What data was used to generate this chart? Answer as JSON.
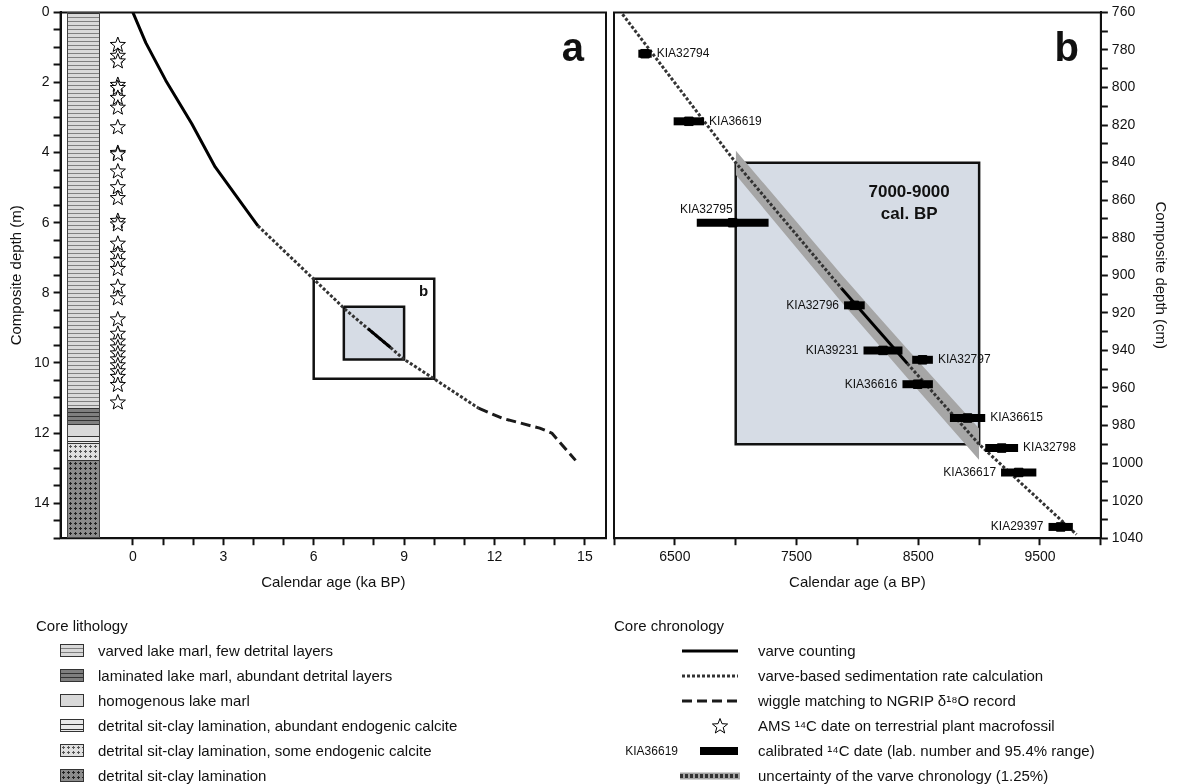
{
  "chart_data": [
    {
      "type": "line",
      "xlabel": "Calendar age (ka BP)",
      "ylabel": "Composite depth (m)",
      "legend": "bottom",
      "legend_title": "Core lithology",
      "xlim": [
        -2.4,
        15.7
      ],
      "xticks": [
        0,
        {
          "value": 1,
          "label": null
        },
        {
          "value": 2,
          "label": null
        },
        3,
        {
          "value": 4,
          "label": null
        },
        {
          "value": 5,
          "label": null
        },
        6,
        {
          "value": 7,
          "label": null
        },
        {
          "value": 8,
          "label": null
        },
        9,
        {
          "value": 10,
          "label": null
        },
        {
          "value": 11,
          "label": null
        },
        12,
        {
          "value": 13,
          "label": null
        },
        {
          "value": 14,
          "label": null
        },
        15
      ],
      "ylim": [
        15,
        0
      ],
      "yticks": [
        0,
        {
          "value": 0.5,
          "label": null
        },
        {
          "value": 1,
          "label": null
        },
        {
          "value": 1.5,
          "label": null
        },
        2,
        {
          "value": 2.5,
          "label": null
        },
        {
          "value": 3,
          "label": null
        },
        {
          "value": 3.5,
          "label": null
        },
        4,
        {
          "value": 4.5,
          "label": null
        },
        {
          "value": 5,
          "label": null
        },
        {
          "value": 5.5,
          "label": null
        },
        6,
        {
          "value": 6.5,
          "label": null
        },
        {
          "value": 7,
          "label": null
        },
        {
          "value": 7.5,
          "label": null
        },
        8,
        {
          "value": 8.5,
          "label": null
        },
        {
          "value": 9,
          "label": null
        },
        {
          "value": 9.5,
          "label": null
        },
        10,
        {
          "value": 10.5,
          "label": null
        },
        {
          "value": 11,
          "label": null
        },
        {
          "value": 11.5,
          "label": null
        },
        12,
        {
          "value": 12.5,
          "label": null
        },
        {
          "value": 13,
          "label": null
        },
        {
          "value": 13.5,
          "label": null
        },
        14,
        {
          "value": 14.5,
          "label": null
        },
        {
          "value": 15,
          "label": null
        }
      ],
      "annotations": [
        "a",
        {
          "text": "b",
          "x": 10,
          "y": 7.6
        },
        "varved lake marl, few detrital layers",
        "laminated lake marl, abundant detrital layers",
        "homogenous lake marl",
        "detrital sit-clay lamination, abundant endogenic calcite",
        "detrital sit-clay lamination, some endogenic calcite",
        "detrital sit-clay lamination"
      ],
      "series": [
        {
          "name": "varve counting",
          "type": "line",
          "line_style": "solid",
          "color": "#000000",
          "x": [
            0,
            0.43,
            1.09,
            1.95,
            2.73,
            3.39,
            4.15,
            6,
            7.81,
            8.55
          ],
          "values": [
            0,
            0.87,
            1.94,
            3.17,
            4.41,
            5.19,
            6.09,
            null,
            9.03,
            9.56
          ]
        },
        {
          "name": "varve-based sedimentation rate calculation",
          "type": "line",
          "line_style": "dotted",
          "color": "#333333",
          "x": [
            4.15,
            6.62,
            7.03,
            7.81,
            8.55,
            8.97,
            9.99,
            11.47
          ],
          "values": [
            6.09,
            8.12,
            8.46,
            9.03,
            9.56,
            9.88,
            10.45,
            11.29
          ]
        },
        {
          "name": "wiggle matching to NGRIP δ¹⁸O record",
          "type": "line",
          "line_style": "dashed",
          "color": "#1a1a1a",
          "x": [
            11.47,
            12.26,
            13.5,
            13.9,
            14.69
          ],
          "values": [
            11.29,
            11.58,
            11.86,
            12.0,
            12.78
          ]
        },
        {
          "name": "AMS ¹⁴C date on terrestrial plant macrofossil",
          "type": "scatter",
          "marker": "star",
          "color": "#000000",
          "x": [
            -0.5,
            -0.5,
            -0.5,
            -0.5,
            -0.5,
            -0.5,
            -0.5,
            -0.5,
            -0.5,
            -0.5,
            -0.5,
            -0.5,
            -0.5,
            -0.5,
            -0.5,
            -0.5,
            -0.5,
            -0.5,
            -0.5,
            -0.5,
            -0.5,
            -0.5,
            -0.5,
            -0.5,
            -0.5,
            -0.5,
            -0.5,
            -0.5,
            -0.5,
            -0.5,
            -0.5,
            -0.5
          ],
          "values": [
            0.93,
            1.24,
            1.4,
            2.07,
            2.16,
            2.44,
            2.72,
            3.28,
            4.01,
            4.05,
            4.54,
            4.99,
            5.3,
            5.95,
            6.05,
            6.6,
            6.89,
            7.1,
            7.32,
            7.83,
            8.16,
            8.76,
            9.17,
            9.39,
            9.56,
            9.73,
            9.9,
            10.07,
            10.24,
            10.4,
            10.63,
            11.13
          ]
        },
        {
          "type": "area",
          "color": "#ffffff",
          "x": [
            6,
            10,
            10,
            6,
            6
          ],
          "values": [
            7.6,
            7.6,
            10.45,
            10.45,
            7.6
          ]
        },
        {
          "type": "area",
          "color": "#d6dce5",
          "x": [
            7,
            9,
            9,
            7,
            7
          ],
          "values": [
            8.4,
            8.4,
            9.9,
            9.9,
            8.4
          ]
        }
      ]
    },
    {
      "type": "line",
      "xlabel": "Calendar age (a BP)",
      "y2label": "Composite depth (cm)",
      "legend": "bottom",
      "legend_title": "Core chronology",
      "xlim": [
        6000,
        10000
      ],
      "xticks": [
        {
          "value": 6000,
          "label": null
        },
        6500,
        {
          "value": 7000,
          "label": null
        },
        7500,
        {
          "value": 8000,
          "label": null
        },
        8500,
        {
          "value": 9000,
          "label": null
        },
        9500,
        {
          "value": 10000,
          "label": null
        }
      ],
      "y2lim": [
        1040,
        760
      ],
      "y2ticks": [
        760,
        {
          "value": 770,
          "label": null
        },
        780,
        {
          "value": 790,
          "label": null
        },
        800,
        {
          "value": 810,
          "label": null
        },
        820,
        {
          "value": 830,
          "label": null
        },
        840,
        {
          "value": 850,
          "label": null
        },
        860,
        {
          "value": 870,
          "label": null
        },
        880,
        {
          "value": 890,
          "label": null
        },
        900,
        {
          "value": 910,
          "label": null
        },
        920,
        {
          "value": 930,
          "label": null
        },
        940,
        {
          "value": 950,
          "label": null
        },
        960,
        {
          "value": 970,
          "label": null
        },
        980,
        {
          "value": 990,
          "label": null
        },
        1000,
        {
          "value": 1010,
          "label": null
        },
        1020,
        {
          "value": 1030,
          "label": null
        },
        1040
      ],
      "annotations": [
        "b",
        "7000-9000\ncal. BP",
        "KIA36619"
      ],
      "series": [
        {
          "type": "line",
          "line_style": "solid",
          "color": "#000000",
          "axis": "y2",
          "x": [
            7870,
            8410
          ],
          "values": [
            907,
            947
          ]
        },
        {
          "name": "calibrated ¹⁴C date  (lab. number and 95.4% range)",
          "type": "scatter",
          "marker": "square",
          "color": "#000000",
          "axis": "y2",
          "x": [
            6255,
            6615,
            6975,
            7975,
            8210,
            8535,
            8495,
            8905,
            9185,
            9325,
            9670
          ],
          "values": [
            782,
            818,
            872,
            916,
            940,
            945,
            958,
            976,
            992,
            1005,
            1034
          ],
          "xerrors": [
            [
              6200,
              6310
            ],
            [
              6490,
              6740
            ],
            [
              6680,
              7270
            ],
            [
              7890,
              8060
            ],
            [
              8050,
              8370
            ],
            [
              8450,
              8620
            ],
            [
              8370,
              8620
            ],
            [
              8760,
              9050
            ],
            [
              9050,
              9320
            ],
            [
              9180,
              9470
            ],
            [
              9570,
              9770
            ]
          ],
          "value_labels": [
            "KIA32794",
            "KIA36619",
            "KIA32795",
            "KIA32796",
            "KIA39231",
            "KIA32797",
            "KIA36616",
            "KIA36615",
            "KIA32798",
            "KIA36617",
            "KIA29397"
          ]
        },
        {
          "name": "uncertainty of the varve chronology (1.25%)",
          "type": "line",
          "line_style": "dotted",
          "color": "#333333",
          "axis": "y2",
          "x": [
            6070,
            7000,
            7870,
            8140,
            8410,
            9000,
            9800
          ],
          "values": [
            761,
            840,
            907,
            null,
            947,
            990,
            1038
          ],
          "lower": [
            null,
            833.5,
            899.7,
            919.5,
            939.3,
            981.6,
            null
          ],
          "upper": [
            null,
            846.5,
            914.3,
            934.5,
            954.7,
            998.4,
            null
          ]
        },
        {
          "type": "area",
          "color": "#d6dce5",
          "axis": "y2",
          "x": [
            7000,
            9000,
            9000,
            7000,
            7000
          ],
          "values": [
            840,
            840,
            990,
            990,
            840
          ]
        }
      ]
    }
  ]
}
